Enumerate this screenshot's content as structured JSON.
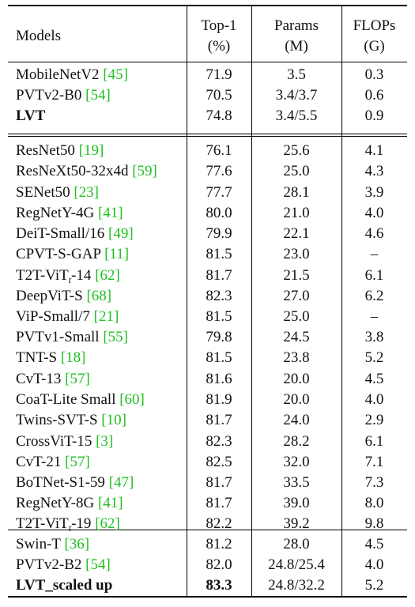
{
  "headers": {
    "models": "Models",
    "top1": "Top-1",
    "top1_unit": "(%)",
    "params": "Params",
    "params_unit": "(M)",
    "flops": "FLOPs",
    "flops_unit": "(G)"
  },
  "colors": {
    "citation": "#1fbf1f"
  },
  "rows": [
    {
      "name": "MobileNetV2 ",
      "ref": "[45]",
      "top1": "71.9",
      "params": "3.5",
      "flops": "0.3"
    },
    {
      "name": "PVTv2-B0 ",
      "ref": "[54]",
      "top1": "70.5",
      "params": "3.4/3.7",
      "flops": "0.6"
    },
    {
      "name": "LVT",
      "ref": "",
      "top1": "74.8",
      "params": "3.4/5.5",
      "flops": "0.9",
      "bold_name": true
    },
    {
      "name": "ResNet50 ",
      "ref": "[19]",
      "top1": "76.1",
      "params": "25.6",
      "flops": "4.1"
    },
    {
      "name": "ResNeXt50-32x4d ",
      "ref": "[59]",
      "top1": "77.6",
      "params": "25.0",
      "flops": "4.3"
    },
    {
      "name": "SENet50 ",
      "ref": "[23]",
      "top1": "77.7",
      "params": "28.1",
      "flops": "3.9"
    },
    {
      "name": "RegNetY-4G ",
      "ref": "[41]",
      "top1": "80.0",
      "params": "21.0",
      "flops": "4.0"
    },
    {
      "name": "DeiT-Small/16 ",
      "ref": "[49]",
      "top1": "79.9",
      "params": "22.1",
      "flops": "4.6"
    },
    {
      "name": "CPVT-S-GAP ",
      "ref": "[11]",
      "top1": "81.5",
      "params": "23.0",
      "flops": "–"
    },
    {
      "name": "T2T-ViT",
      "sub": "t",
      "name_suffix": "-14 ",
      "ref": "[62]",
      "top1": "81.7",
      "params": "21.5",
      "flops": "6.1"
    },
    {
      "name": "DeepViT-S ",
      "ref": "[68]",
      "top1": "82.3",
      "params": "27.0",
      "flops": "6.2"
    },
    {
      "name": "ViP-Small/7 ",
      "ref": "[21]",
      "top1": "81.5",
      "params": "25.0",
      "flops": "–"
    },
    {
      "name": "PVTv1-Small ",
      "ref": "[55]",
      "top1": "79.8",
      "params": "24.5",
      "flops": "3.8"
    },
    {
      "name": "TNT-S ",
      "ref": "[18]",
      "top1": "81.5",
      "params": "23.8",
      "flops": "5.2"
    },
    {
      "name": "CvT-13 ",
      "ref": "[57]",
      "top1": "81.6",
      "params": "20.0",
      "flops": "4.5"
    },
    {
      "name": "CoaT-Lite Small ",
      "ref": "[60]",
      "top1": "81.9",
      "params": "20.0",
      "flops": "4.0"
    },
    {
      "name": "Twins-SVT-S ",
      "ref": "[10]",
      "top1": "81.7",
      "params": "24.0",
      "flops": "2.9"
    },
    {
      "name": "CrossViT-15 ",
      "ref": "[3]",
      "top1": "82.3",
      "params": "28.2",
      "flops": "6.1"
    },
    {
      "name": "CvT-21 ",
      "ref": "[57]",
      "top1": "82.5",
      "params": "32.0",
      "flops": "7.1"
    },
    {
      "name": "BoTNet-S1-59 ",
      "ref": "[47]",
      "top1": "81.7",
      "params": "33.5",
      "flops": "7.3"
    },
    {
      "name": "RegNetY-8G ",
      "ref": "[41]",
      "top1": "81.7",
      "params": "39.0",
      "flops": "8.0"
    },
    {
      "name": "T2T-ViT",
      "sub": "t",
      "name_suffix": "-19 ",
      "ref": "[62]",
      "top1": "82.2",
      "params": "39.2",
      "flops": "9.8"
    },
    {
      "name": "Swin-T ",
      "ref": "[36]",
      "top1": "81.2",
      "params": "28.0",
      "flops": "4.5"
    },
    {
      "name": "PVTv2-B2 ",
      "ref": "[54]",
      "top1": "82.0",
      "params": "24.8/25.4",
      "flops": "4.0"
    },
    {
      "name": "LVT_scaled up",
      "ref": "",
      "top1": "83.3",
      "params": "24.8/32.2",
      "flops": "5.2",
      "bold_name": true,
      "bold_top1": true
    }
  ]
}
